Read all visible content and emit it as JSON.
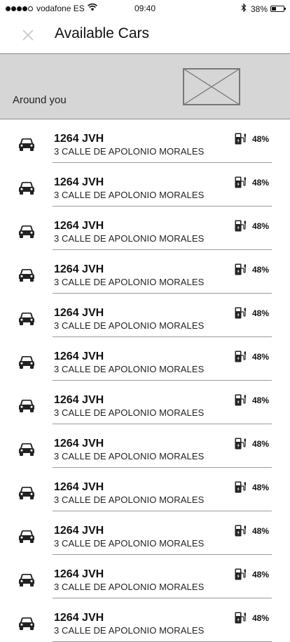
{
  "status_bar": {
    "carrier": "vodafone ES",
    "time": "09:40",
    "battery": "38%",
    "battery_fraction": 0.38,
    "signal_bars": 4
  },
  "header": {
    "title": "Available Cars",
    "close_icon": "close-icon"
  },
  "map": {
    "label": "Around you",
    "placeholder_icon": "image-placeholder-icon"
  },
  "cars": [
    {
      "plate": "1264 JVH",
      "address": "3 CALLE DE APOLONIO MORALES",
      "battery": "48%"
    },
    {
      "plate": "1264 JVH",
      "address": "3 CALLE DE APOLONIO MORALES",
      "battery": "48%"
    },
    {
      "plate": "1264 JVH",
      "address": "3 CALLE DE APOLONIO MORALES",
      "battery": "48%"
    },
    {
      "plate": "1264 JVH",
      "address": "3 CALLE DE APOLONIO MORALES",
      "battery": "48%"
    },
    {
      "plate": "1264 JVH",
      "address": "3 CALLE DE APOLONIO MORALES",
      "battery": "48%"
    },
    {
      "plate": "1264 JVH",
      "address": "3 CALLE DE APOLONIO MORALES",
      "battery": "48%"
    },
    {
      "plate": "1264 JVH",
      "address": "3 CALLE DE APOLONIO MORALES",
      "battery": "48%"
    },
    {
      "plate": "1264 JVH",
      "address": "3 CALLE DE APOLONIO MORALES",
      "battery": "48%"
    },
    {
      "plate": "1264 JVH",
      "address": "3 CALLE DE APOLONIO MORALES",
      "battery": "48%"
    },
    {
      "plate": "1264 JVH",
      "address": "3 CALLE DE APOLONIO MORALES",
      "battery": "48%"
    },
    {
      "plate": "1264 JVH",
      "address": "3 CALLE DE APOLONIO MORALES",
      "battery": "48%"
    },
    {
      "plate": "1264 JVH",
      "address": "3 CALLE DE APOLONIO MORALES",
      "battery": "48%"
    }
  ]
}
